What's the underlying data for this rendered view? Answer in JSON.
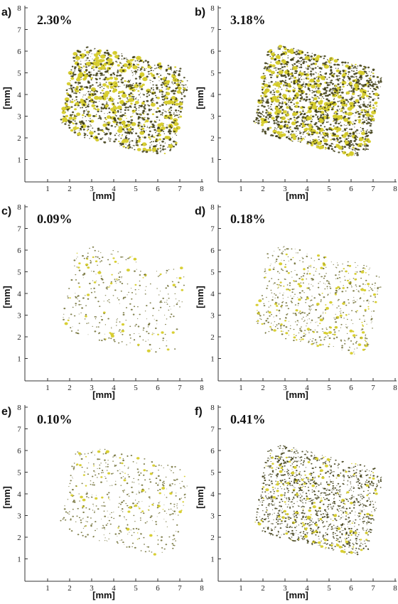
{
  "axes": {
    "x_label": "[mm]",
    "y_label": "[mm]",
    "ticks": [
      1,
      2,
      3,
      4,
      5,
      6,
      7,
      8
    ]
  },
  "panels": [
    {
      "label": "a)",
      "porosity": "2.30%"
    },
    {
      "label": "b)",
      "porosity": "3.18%"
    },
    {
      "label": "c)",
      "porosity": "0.09%"
    },
    {
      "label": "d)",
      "porosity": "0.18%"
    },
    {
      "label": "e)",
      "porosity": "0.10%"
    },
    {
      "label": "f)",
      "porosity": "0.41%"
    }
  ]
}
